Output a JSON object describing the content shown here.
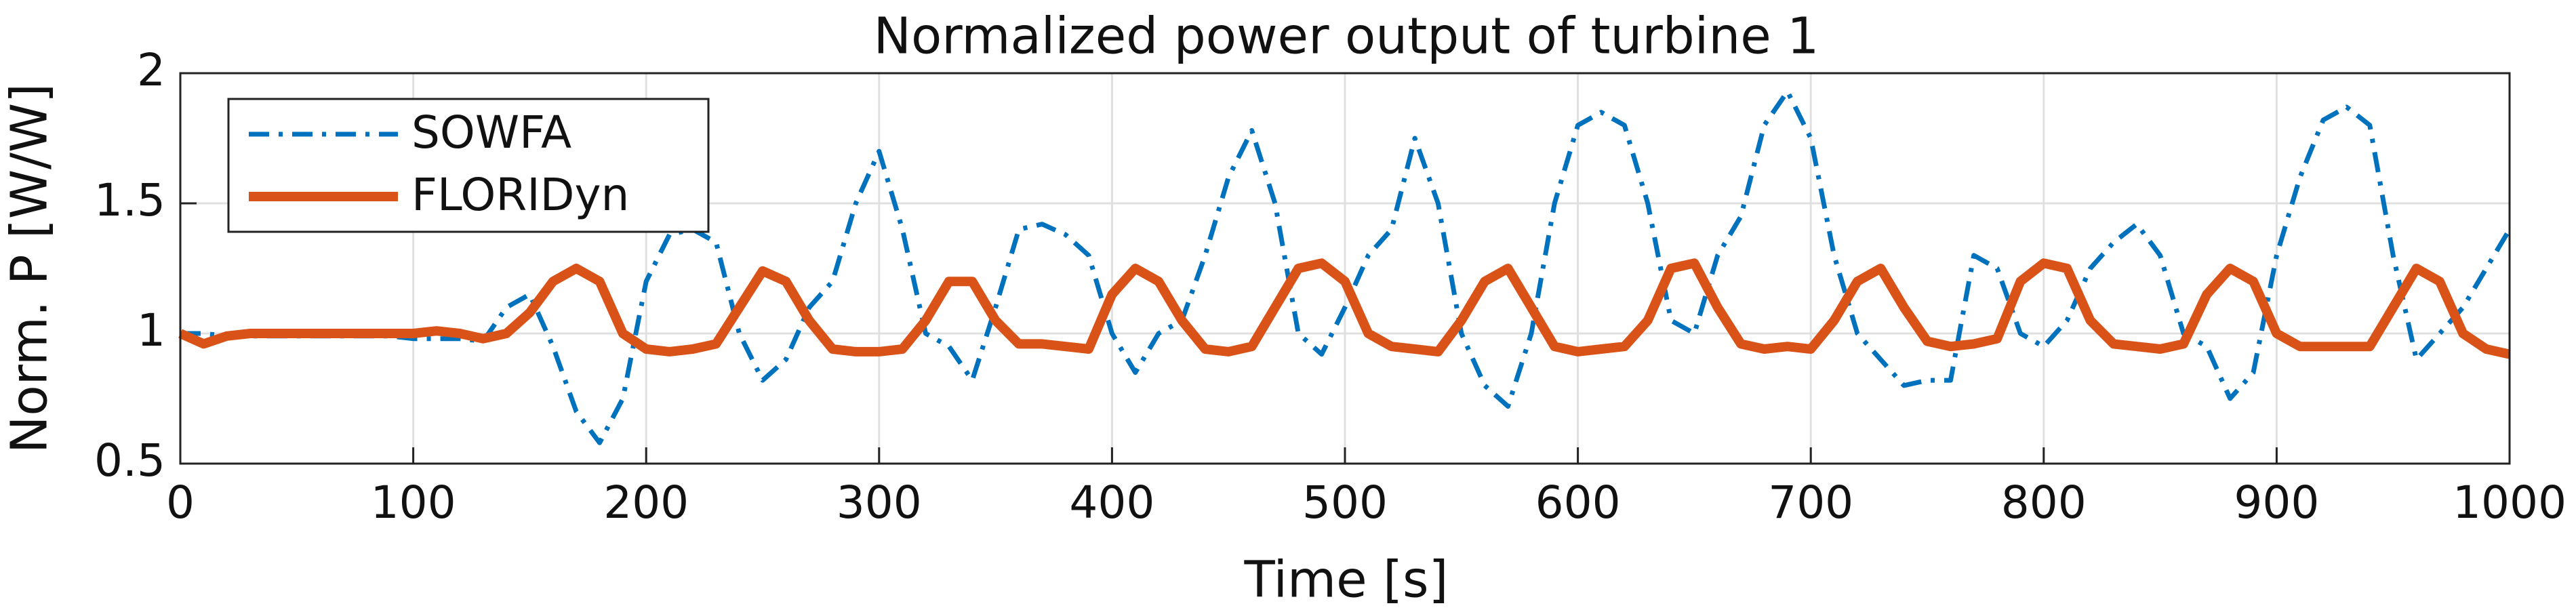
{
  "chart_data": {
    "type": "line",
    "title": "Normalized power output of turbine 1",
    "x_label": "Time [s]",
    "y_label": "Norm. P [W/W]",
    "x": [
      0,
      10,
      20,
      30,
      40,
      50,
      60,
      70,
      80,
      90,
      100,
      110,
      120,
      130,
      140,
      150,
      160,
      170,
      180,
      190,
      200,
      210,
      220,
      230,
      240,
      250,
      260,
      270,
      280,
      290,
      300,
      310,
      320,
      330,
      340,
      350,
      360,
      370,
      380,
      390,
      400,
      410,
      420,
      430,
      440,
      450,
      460,
      470,
      480,
      490,
      500,
      510,
      520,
      530,
      540,
      550,
      560,
      570,
      580,
      590,
      600,
      610,
      620,
      630,
      640,
      650,
      660,
      670,
      680,
      690,
      700,
      710,
      720,
      730,
      740,
      750,
      760,
      770,
      780,
      790,
      800,
      810,
      820,
      830,
      840,
      850,
      860,
      870,
      880,
      890,
      900,
      910,
      920,
      930,
      940,
      950,
      960,
      970,
      980,
      990,
      1000
    ],
    "series": [
      {
        "name": "SOWFA",
        "color": "#0072bd",
        "linestyle": "dashdot",
        "values": [
          1.0,
          1.0,
          0.99,
          0.99,
          0.99,
          0.99,
          0.99,
          0.99,
          0.99,
          0.99,
          0.98,
          0.98,
          0.98,
          0.97,
          1.1,
          1.15,
          0.95,
          0.7,
          0.58,
          0.75,
          1.2,
          1.38,
          1.4,
          1.35,
          1.0,
          0.82,
          0.9,
          1.1,
          1.2,
          1.5,
          1.7,
          1.4,
          1.0,
          0.95,
          0.82,
          1.1,
          1.4,
          1.42,
          1.38,
          1.3,
          1.0,
          0.85,
          1.0,
          1.05,
          1.3,
          1.6,
          1.78,
          1.5,
          1.0,
          0.92,
          1.1,
          1.3,
          1.4,
          1.75,
          1.5,
          1.0,
          0.8,
          0.72,
          1.0,
          1.5,
          1.8,
          1.85,
          1.8,
          1.5,
          1.05,
          1.0,
          1.3,
          1.45,
          1.8,
          1.93,
          1.75,
          1.3,
          1.0,
          0.9,
          0.8,
          0.82,
          0.82,
          1.3,
          1.25,
          1.0,
          0.95,
          1.05,
          1.25,
          1.35,
          1.42,
          1.3,
          1.0,
          0.95,
          0.75,
          0.85,
          1.3,
          1.6,
          1.82,
          1.87,
          1.8,
          1.3,
          0.9,
          1.0,
          1.1,
          1.25,
          1.4
        ]
      },
      {
        "name": "FLORIDyn",
        "color": "#d95319",
        "linestyle": "solid",
        "values": [
          1.0,
          0.96,
          0.99,
          1.0,
          1.0,
          1.0,
          1.0,
          1.0,
          1.0,
          1.0,
          1.0,
          1.01,
          1.0,
          0.98,
          1.0,
          1.08,
          1.2,
          1.25,
          1.2,
          1.0,
          0.94,
          0.93,
          0.94,
          0.96,
          1.1,
          1.24,
          1.2,
          1.05,
          0.94,
          0.93,
          0.93,
          0.94,
          1.05,
          1.2,
          1.2,
          1.05,
          0.96,
          0.96,
          0.95,
          0.94,
          1.15,
          1.25,
          1.2,
          1.05,
          0.94,
          0.93,
          0.95,
          1.1,
          1.25,
          1.27,
          1.2,
          1.0,
          0.95,
          0.94,
          0.93,
          1.05,
          1.2,
          1.25,
          1.1,
          0.95,
          0.93,
          0.94,
          0.95,
          1.05,
          1.25,
          1.27,
          1.1,
          0.96,
          0.94,
          0.95,
          0.94,
          1.05,
          1.2,
          1.25,
          1.1,
          0.97,
          0.95,
          0.96,
          0.98,
          1.2,
          1.27,
          1.25,
          1.05,
          0.96,
          0.95,
          0.94,
          0.96,
          1.15,
          1.25,
          1.2,
          1.0,
          0.95,
          0.95,
          0.95,
          0.95,
          1.1,
          1.25,
          1.2,
          1.0,
          0.94,
          0.92
        ]
      }
    ],
    "xlim": [
      0,
      1000
    ],
    "xticks": [
      0,
      100,
      200,
      300,
      400,
      500,
      600,
      700,
      800,
      900,
      1000
    ],
    "ylim": [
      0.5,
      2
    ],
    "yticks": [
      0.5,
      1,
      1.5,
      2
    ],
    "grid": true,
    "legend": "upper left"
  }
}
